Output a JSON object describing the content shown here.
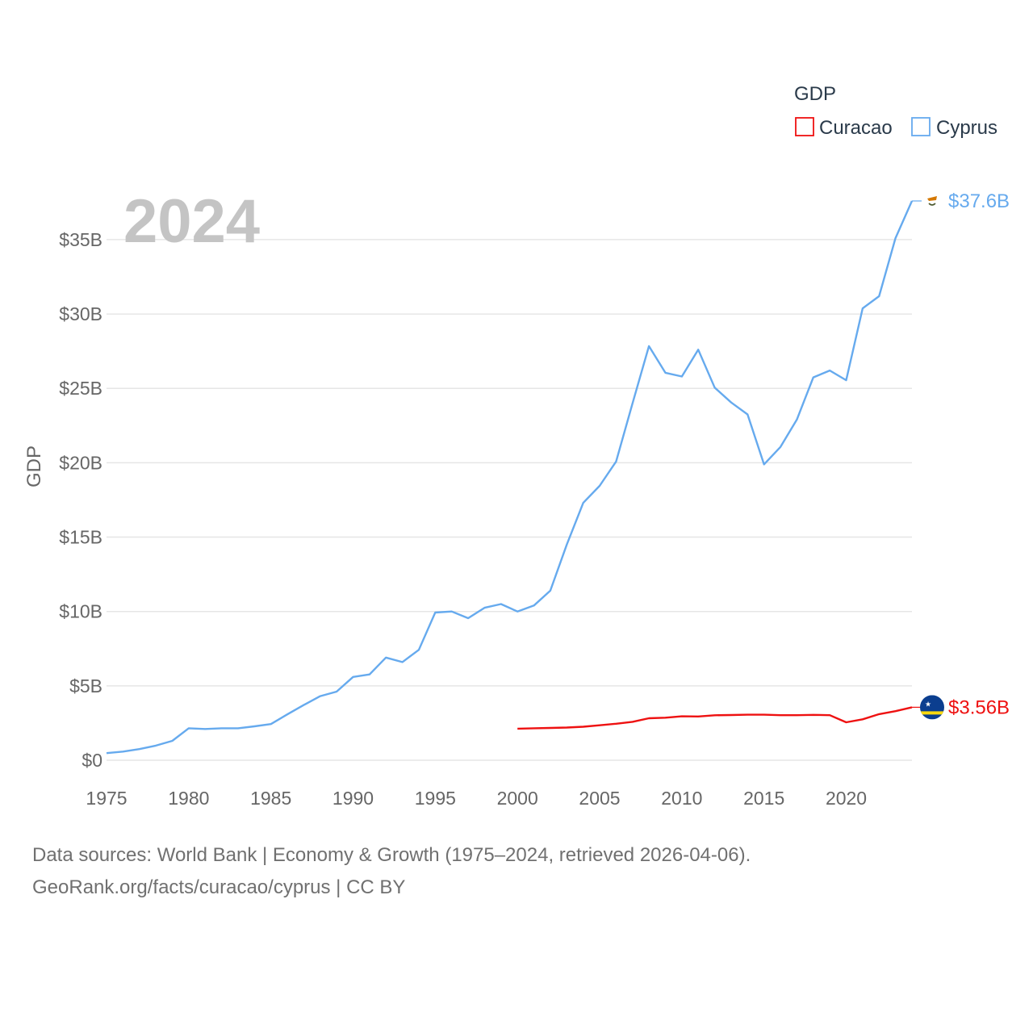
{
  "chart_data": {
    "type": "line",
    "year_label": "2024",
    "ylabel": "GDP",
    "xlim": [
      1975,
      2024
    ],
    "ylim": [
      0,
      37.6
    ],
    "x_ticks": [
      1975,
      1980,
      1985,
      1990,
      1995,
      2000,
      2005,
      2010,
      2015,
      2020
    ],
    "x_tick_labels": [
      "1975",
      "1980",
      "1985",
      "1990",
      "1995",
      "2000",
      "2005",
      "2010",
      "2015",
      "2020"
    ],
    "y_ticks": [
      0,
      5,
      10,
      15,
      20,
      25,
      30,
      35
    ],
    "y_tick_labels": [
      "$0",
      "$5B",
      "$10B",
      "$15B",
      "$20B",
      "$25B",
      "$30B",
      "$35B"
    ],
    "legend": {
      "title": "GDP",
      "items": [
        {
          "label": "Curacao",
          "color": "#ee1111"
        },
        {
          "label": "Cyprus",
          "color": "#66aaee"
        }
      ]
    },
    "series": [
      {
        "name": "Cyprus",
        "color": "#66aaee",
        "end_label": "$37.6B",
        "flag_icon": "cyprus-flag-icon",
        "x": [
          1975,
          1976,
          1977,
          1978,
          1979,
          1980,
          1981,
          1982,
          1983,
          1984,
          1985,
          1986,
          1987,
          1988,
          1989,
          1990,
          1991,
          1992,
          1993,
          1994,
          1995,
          1996,
          1997,
          1998,
          1999,
          2000,
          2001,
          2002,
          2003,
          2004,
          2005,
          2006,
          2007,
          2008,
          2009,
          2010,
          2011,
          2012,
          2013,
          2014,
          2015,
          2016,
          2017,
          2018,
          2019,
          2020,
          2021,
          2022,
          2023,
          2024
        ],
        "values": [
          0.48,
          0.58,
          0.75,
          0.98,
          1.3,
          2.15,
          2.1,
          2.15,
          2.15,
          2.28,
          2.43,
          3.08,
          3.71,
          4.31,
          4.61,
          5.6,
          5.77,
          6.9,
          6.6,
          7.42,
          9.93,
          10.0,
          9.55,
          10.25,
          10.5,
          10.0,
          10.4,
          11.4,
          14.5,
          17.3,
          18.45,
          20.08,
          24.0,
          27.84,
          26.05,
          25.8,
          27.6,
          25.05,
          24.05,
          23.25,
          19.89,
          21.06,
          22.9,
          25.74,
          26.2,
          25.55,
          30.38,
          31.2,
          35.1,
          37.6
        ]
      },
      {
        "name": "Curacao",
        "color": "#ee1111",
        "end_label": "$3.56B",
        "flag_icon": "curacao-flag-icon",
        "x": [
          2000,
          2001,
          2002,
          2003,
          2004,
          2005,
          2006,
          2007,
          2008,
          2009,
          2010,
          2011,
          2012,
          2013,
          2014,
          2015,
          2016,
          2017,
          2018,
          2019,
          2020,
          2021,
          2022,
          2023,
          2024
        ],
        "values": [
          2.12,
          2.15,
          2.17,
          2.2,
          2.25,
          2.35,
          2.45,
          2.58,
          2.82,
          2.86,
          2.95,
          2.94,
          3.02,
          3.04,
          3.06,
          3.06,
          3.03,
          3.03,
          3.05,
          3.03,
          2.55,
          2.75,
          3.1,
          3.3,
          3.56
        ]
      }
    ]
  },
  "source": {
    "line1": "Data sources: World Bank | Economy & Growth (1975–2024, retrieved 2026-04-06).",
    "line2": "GeoRank.org/facts/curacao/cyprus | CC BY"
  }
}
